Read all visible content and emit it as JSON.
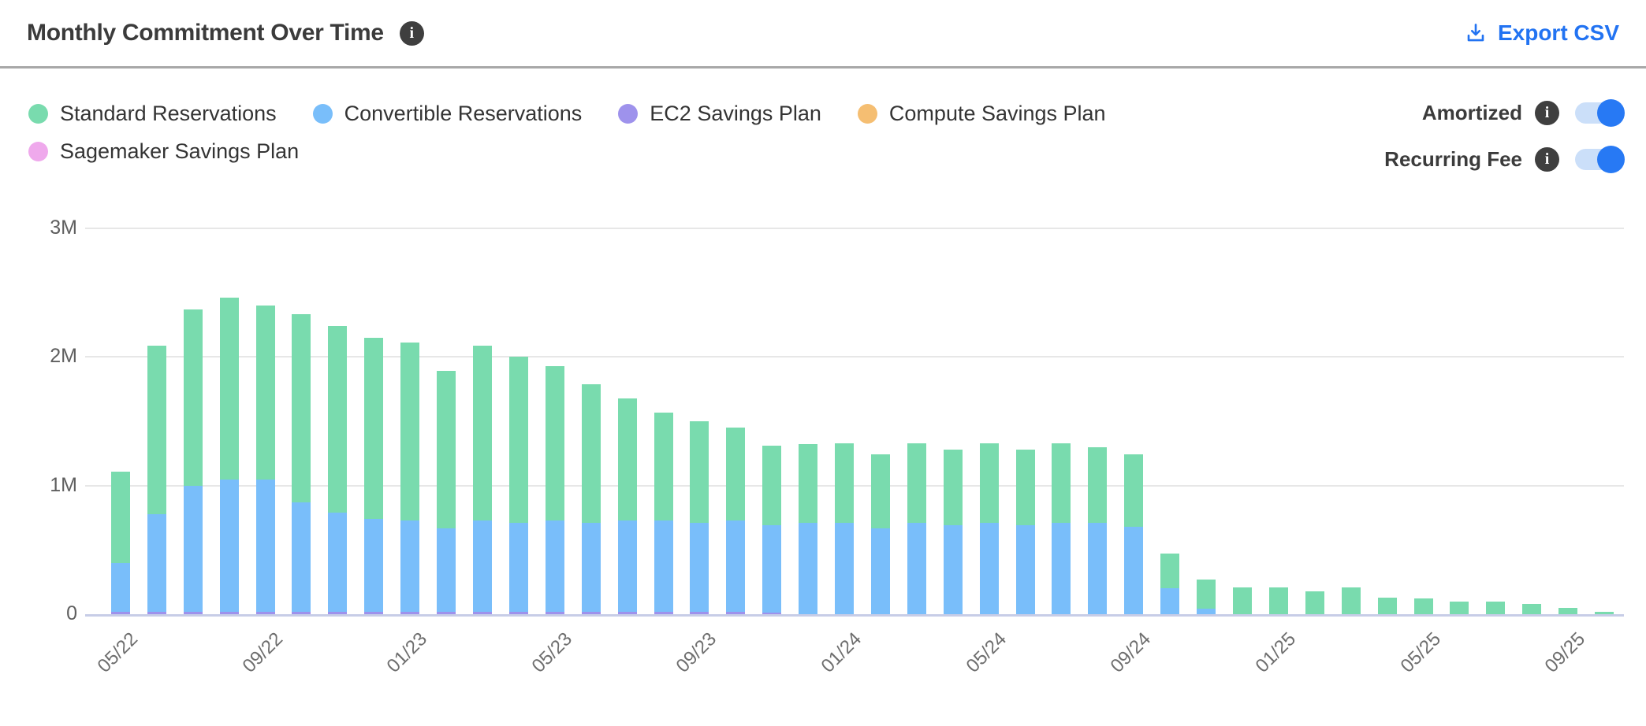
{
  "header": {
    "title": "Monthly Commitment Over Time",
    "export_label": "Export CSV"
  },
  "icons": {
    "info": "i"
  },
  "controls": {
    "amortized": {
      "label": "Amortized",
      "on": true
    },
    "recurring_fee": {
      "label": "Recurring Fee",
      "on": true
    }
  },
  "colors": {
    "accent_blue": "#2273f2",
    "toggle_track": "#cbdff9",
    "toggle_knob": "#2779f4",
    "divider": "#a8a8a8",
    "gridline": "#e7e7e7",
    "baseline": "#c7cde7",
    "axis_text": "#6e6e6e"
  },
  "chart_data": {
    "type": "bar",
    "stacked": true,
    "title": "Monthly Commitment Over Time",
    "xlabel": "",
    "ylabel": "",
    "unit": "millions",
    "ylim": [
      0,
      3
    ],
    "grid": "horizontal",
    "legend_position": "top-left",
    "x_tick_every": 4,
    "yticks": [
      {
        "label": "0",
        "value": 0
      },
      {
        "label": "1M",
        "value": 1
      },
      {
        "label": "2M",
        "value": 2
      },
      {
        "label": "3M",
        "value": 3
      }
    ],
    "categories": [
      "05/22",
      "06/22",
      "07/22",
      "08/22",
      "09/22",
      "10/22",
      "11/22",
      "12/22",
      "01/23",
      "02/23",
      "03/23",
      "04/23",
      "05/23",
      "06/23",
      "07/23",
      "08/23",
      "09/23",
      "10/23",
      "11/23",
      "12/23",
      "01/24",
      "02/24",
      "03/24",
      "04/24",
      "05/24",
      "06/24",
      "07/24",
      "08/24",
      "09/24",
      "10/24",
      "11/24",
      "12/24",
      "01/25",
      "02/25",
      "03/25",
      "04/25",
      "05/25",
      "06/25",
      "07/25",
      "08/25",
      "09/25",
      "10/25"
    ],
    "stack_order_bottom_to_top": [
      "Sagemaker Savings Plan",
      "Compute Savings Plan",
      "EC2 Savings Plan",
      "Convertible Reservations",
      "Standard Reservations"
    ],
    "series": [
      {
        "name": "Standard Reservations",
        "color": "#79dbae",
        "values": [
          0.71,
          1.31,
          1.37,
          1.41,
          1.35,
          1.46,
          1.45,
          1.41,
          1.38,
          1.22,
          1.36,
          1.29,
          1.2,
          1.08,
          0.95,
          0.84,
          0.79,
          0.72,
          0.62,
          0.61,
          0.62,
          0.57,
          0.62,
          0.59,
          0.62,
          0.59,
          0.62,
          0.59,
          0.56,
          0.27,
          0.23,
          0.21,
          0.21,
          0.18,
          0.21,
          0.13,
          0.12,
          0.1,
          0.1,
          0.08,
          0.05,
          0.02
        ]
      },
      {
        "name": "Convertible Reservations",
        "color": "#79befa",
        "values": [
          0.38,
          0.76,
          0.98,
          1.03,
          1.03,
          0.85,
          0.77,
          0.72,
          0.71,
          0.65,
          0.71,
          0.69,
          0.71,
          0.69,
          0.71,
          0.71,
          0.69,
          0.71,
          0.68,
          0.71,
          0.71,
          0.67,
          0.71,
          0.69,
          0.71,
          0.69,
          0.71,
          0.71,
          0.68,
          0.2,
          0.04,
          0,
          0,
          0,
          0,
          0,
          0,
          0,
          0,
          0,
          0,
          0
        ]
      },
      {
        "name": "EC2 Savings Plan",
        "color": "#9e92ec",
        "values": [
          0.02,
          0.02,
          0.02,
          0.02,
          0.02,
          0.02,
          0.02,
          0.02,
          0.02,
          0.02,
          0.02,
          0.02,
          0.02,
          0.02,
          0.02,
          0.02,
          0.02,
          0.02,
          0.01,
          0,
          0,
          0,
          0,
          0,
          0,
          0,
          0,
          0,
          0,
          0,
          0,
          0,
          0,
          0,
          0,
          0,
          0,
          0,
          0,
          0,
          0,
          0
        ]
      },
      {
        "name": "Compute Savings Plan",
        "color": "#f5be72",
        "values": [
          0,
          0,
          0,
          0,
          0,
          0,
          0,
          0,
          0,
          0,
          0,
          0,
          0,
          0,
          0,
          0,
          0,
          0,
          0,
          0,
          0,
          0,
          0,
          0,
          0,
          0,
          0,
          0,
          0,
          0,
          0,
          0,
          0,
          0,
          0,
          0,
          0,
          0,
          0,
          0,
          0,
          0
        ]
      },
      {
        "name": "Sagemaker Savings Plan",
        "color": "#efa9ec",
        "values": [
          0,
          0,
          0,
          0,
          0,
          0,
          0,
          0,
          0,
          0,
          0,
          0,
          0,
          0,
          0,
          0,
          0,
          0,
          0,
          0,
          0,
          0,
          0,
          0,
          0,
          0,
          0,
          0,
          0,
          0,
          0,
          0,
          0,
          0,
          0,
          0,
          0,
          0,
          0,
          0,
          0,
          0
        ]
      }
    ]
  }
}
